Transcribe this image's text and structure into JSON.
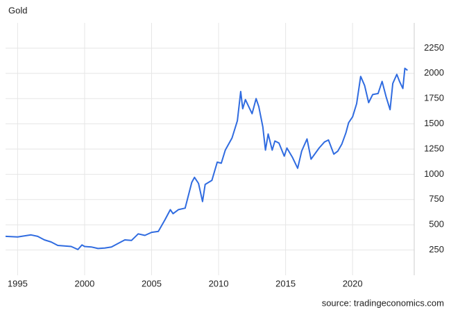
{
  "chart_data": {
    "type": "line",
    "title": "Gold",
    "source": "source: tradingeconomics.com",
    "x": [
      1994.1,
      1995,
      1996,
      1996.5,
      1997,
      1997.5,
      1998,
      1998.5,
      1999,
      1999.5,
      1999.8,
      2000,
      2000.5,
      2001,
      2001.5,
      2002,
      2002.5,
      2003,
      2003.5,
      2004,
      2004.5,
      2005,
      2005.5,
      2006,
      2006.4,
      2006.6,
      2007,
      2007.5,
      2008,
      2008.2,
      2008.5,
      2008.8,
      2009,
      2009.5,
      2009.9,
      2010.2,
      2010.5,
      2011,
      2011.4,
      2011.65,
      2011.8,
      2012,
      2012.5,
      2012.8,
      2013,
      2013.3,
      2013.5,
      2013.7,
      2014,
      2014.2,
      2014.5,
      2014.9,
      2015.1,
      2015.5,
      2015.9,
      2016.2,
      2016.6,
      2016.9,
      2017.5,
      2017.9,
      2018.2,
      2018.6,
      2018.9,
      2019.2,
      2019.5,
      2019.7,
      2020,
      2020.3,
      2020.6,
      2020.9,
      2021.2,
      2021.5,
      2021.9,
      2022.2,
      2022.5,
      2022.8,
      2023,
      2023.3,
      2023.5,
      2023.75,
      2023.9,
      2024.1
    ],
    "series": [
      {
        "name": "Gold",
        "color": "#2f6be0",
        "values": [
          385,
          380,
          400,
          385,
          350,
          330,
          295,
          290,
          285,
          255,
          300,
          285,
          280,
          265,
          270,
          280,
          315,
          350,
          345,
          410,
          395,
          425,
          435,
          550,
          650,
          610,
          650,
          665,
          920,
          970,
          910,
          730,
          900,
          940,
          1120,
          1110,
          1240,
          1360,
          1530,
          1820,
          1650,
          1740,
          1600,
          1750,
          1670,
          1470,
          1240,
          1400,
          1240,
          1330,
          1310,
          1180,
          1260,
          1170,
          1060,
          1230,
          1350,
          1150,
          1260,
          1320,
          1340,
          1200,
          1230,
          1300,
          1410,
          1510,
          1570,
          1700,
          1970,
          1880,
          1710,
          1790,
          1800,
          1920,
          1770,
          1640,
          1900,
          1990,
          1920,
          1850,
          2050,
          2030
        ]
      }
    ],
    "xlim": [
      1994.1,
      2024.6
    ],
    "ylim": [
      0,
      2500
    ],
    "xticks": [
      1995,
      2000,
      2005,
      2010,
      2015,
      2020
    ],
    "yticks": [
      250,
      500,
      750,
      1000,
      1250,
      1500,
      1750,
      2000,
      2250
    ],
    "grid": true
  }
}
